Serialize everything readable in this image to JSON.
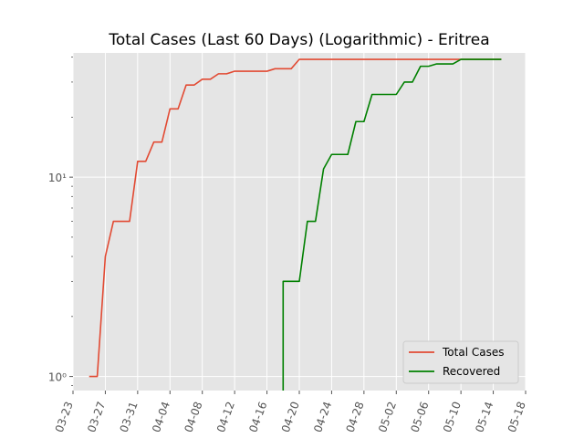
{
  "chart_data": {
    "type": "line",
    "title": "Total Cases (Last 60 Days) (Logarithmic) - Eritrea",
    "xlabel": "",
    "ylabel": "",
    "y_scale": "log",
    "ylim": [
      0.85,
      42
    ],
    "xlim": [
      "2020-03-23",
      "2020-05-18"
    ],
    "x_ticks": [
      "03-23",
      "03-27",
      "03-31",
      "04-04",
      "04-08",
      "04-12",
      "04-16",
      "04-20",
      "04-24",
      "04-28",
      "05-02",
      "05-06",
      "05-10",
      "05-14",
      "05-18"
    ],
    "y_ticks": [
      {
        "value": 1,
        "label": "10⁰"
      },
      {
        "value": 10,
        "label": "10¹"
      }
    ],
    "grid": true,
    "legend_position": "lower-right",
    "series": [
      {
        "name": "Total Cases",
        "color": "#E24A33",
        "points": [
          [
            "2020-03-25",
            1
          ],
          [
            "2020-03-26",
            1
          ],
          [
            "2020-03-27",
            4
          ],
          [
            "2020-03-28",
            6
          ],
          [
            "2020-03-29",
            6
          ],
          [
            "2020-03-30",
            6
          ],
          [
            "2020-03-31",
            12
          ],
          [
            "2020-04-01",
            12
          ],
          [
            "2020-04-02",
            15
          ],
          [
            "2020-04-03",
            15
          ],
          [
            "2020-04-04",
            22
          ],
          [
            "2020-04-05",
            22
          ],
          [
            "2020-04-06",
            29
          ],
          [
            "2020-04-07",
            29
          ],
          [
            "2020-04-08",
            31
          ],
          [
            "2020-04-09",
            31
          ],
          [
            "2020-04-10",
            33
          ],
          [
            "2020-04-11",
            33
          ],
          [
            "2020-04-12",
            34
          ],
          [
            "2020-04-13",
            34
          ],
          [
            "2020-04-14",
            34
          ],
          [
            "2020-04-15",
            34
          ],
          [
            "2020-04-16",
            34
          ],
          [
            "2020-04-17",
            35
          ],
          [
            "2020-04-18",
            35
          ],
          [
            "2020-04-19",
            35
          ],
          [
            "2020-04-20",
            39
          ],
          [
            "2020-04-21",
            39
          ],
          [
            "2020-04-22",
            39
          ],
          [
            "2020-04-23",
            39
          ],
          [
            "2020-04-24",
            39
          ],
          [
            "2020-04-25",
            39
          ],
          [
            "2020-04-26",
            39
          ],
          [
            "2020-04-27",
            39
          ],
          [
            "2020-04-28",
            39
          ],
          [
            "2020-04-29",
            39
          ],
          [
            "2020-04-30",
            39
          ],
          [
            "2020-05-01",
            39
          ],
          [
            "2020-05-02",
            39
          ],
          [
            "2020-05-03",
            39
          ],
          [
            "2020-05-04",
            39
          ],
          [
            "2020-05-05",
            39
          ],
          [
            "2020-05-06",
            39
          ],
          [
            "2020-05-07",
            39
          ],
          [
            "2020-05-08",
            39
          ],
          [
            "2020-05-09",
            39
          ],
          [
            "2020-05-10",
            39
          ],
          [
            "2020-05-11",
            39
          ],
          [
            "2020-05-12",
            39
          ],
          [
            "2020-05-13",
            39
          ],
          [
            "2020-05-14",
            39
          ],
          [
            "2020-05-15",
            39
          ]
        ]
      },
      {
        "name": "Recovered",
        "color": "#008000",
        "points": [
          [
            "2020-04-18",
            0.5
          ],
          [
            "2020-04-18",
            3
          ],
          [
            "2020-04-19",
            3
          ],
          [
            "2020-04-20",
            3
          ],
          [
            "2020-04-21",
            6
          ],
          [
            "2020-04-22",
            6
          ],
          [
            "2020-04-23",
            11
          ],
          [
            "2020-04-24",
            13
          ],
          [
            "2020-04-25",
            13
          ],
          [
            "2020-04-26",
            13
          ],
          [
            "2020-04-27",
            19
          ],
          [
            "2020-04-28",
            19
          ],
          [
            "2020-04-29",
            26
          ],
          [
            "2020-04-30",
            26
          ],
          [
            "2020-05-01",
            26
          ],
          [
            "2020-05-02",
            26
          ],
          [
            "2020-05-03",
            30
          ],
          [
            "2020-05-04",
            30
          ],
          [
            "2020-05-05",
            36
          ],
          [
            "2020-05-06",
            36
          ],
          [
            "2020-05-07",
            37
          ],
          [
            "2020-05-08",
            37
          ],
          [
            "2020-05-09",
            37
          ],
          [
            "2020-05-10",
            39
          ],
          [
            "2020-05-11",
            39
          ],
          [
            "2020-05-12",
            39
          ],
          [
            "2020-05-13",
            39
          ],
          [
            "2020-05-14",
            39
          ],
          [
            "2020-05-15",
            39
          ]
        ]
      }
    ]
  },
  "colors": {
    "plot_background": "#E5E5E5",
    "grid": "#FFFFFF",
    "legend_background": "#E5E5E5",
    "legend_border": "#CCCCCC"
  }
}
